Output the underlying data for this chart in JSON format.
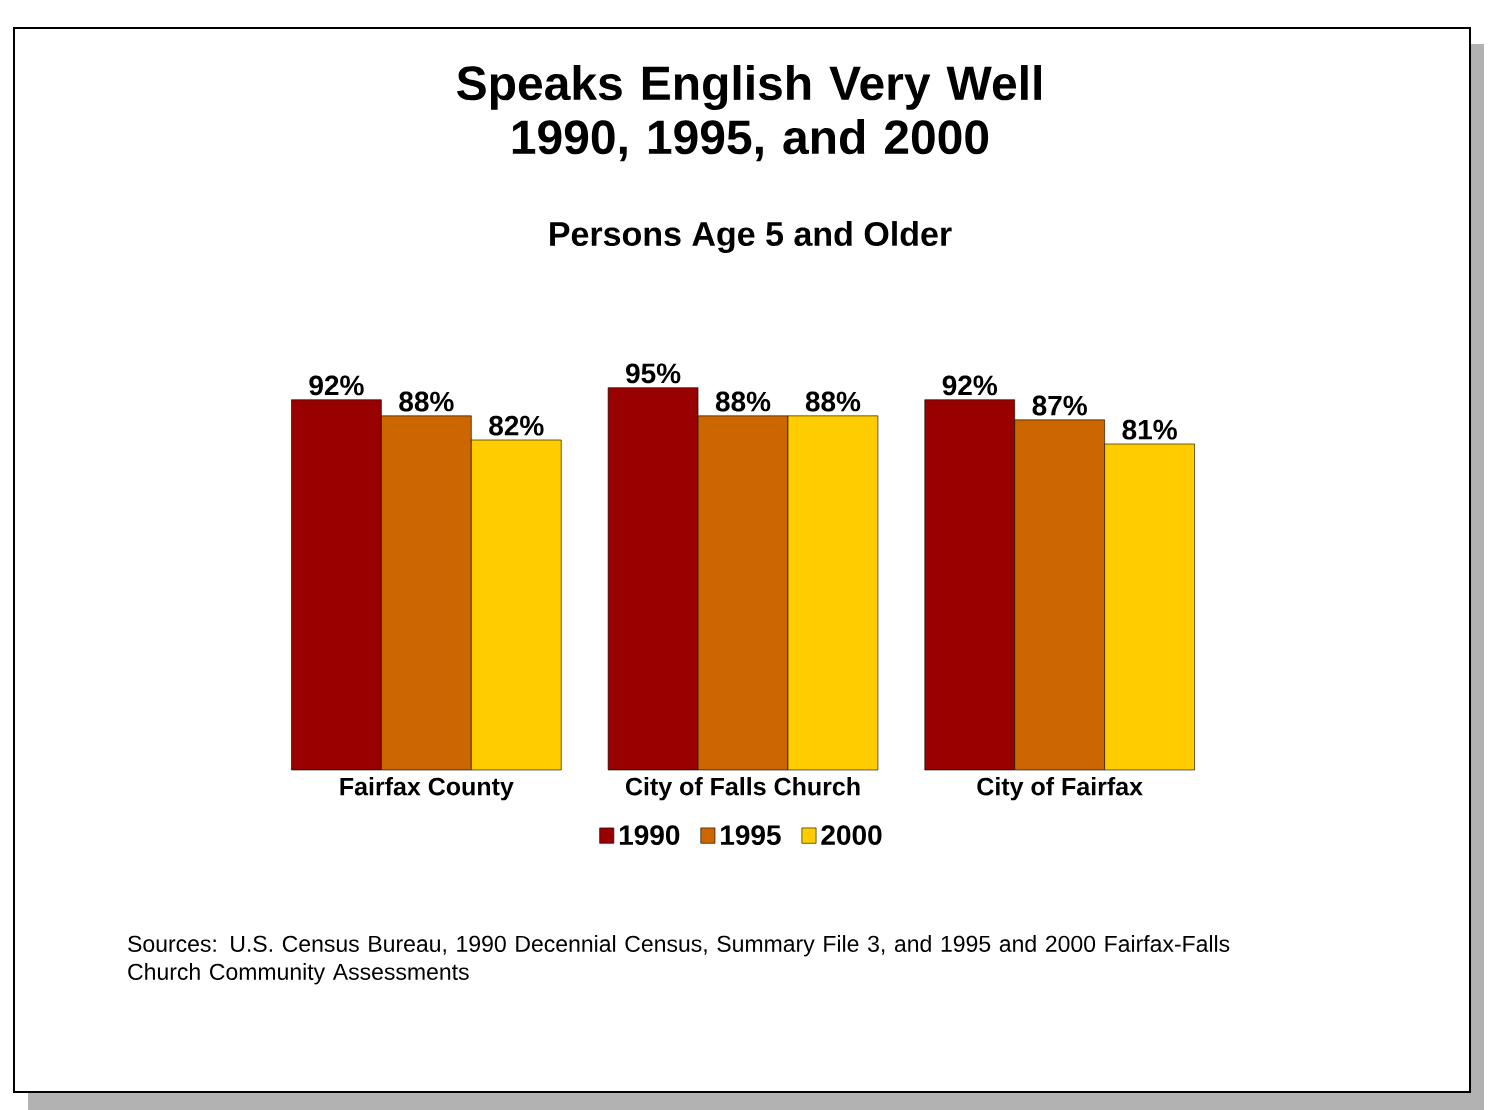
{
  "chart_data": {
    "type": "bar",
    "title": "Speaks English Very Well 1990, 1995, and 2000",
    "subtitle": "Persons Age 5 and Older",
    "categories": [
      "Fairfax County",
      "City of Falls Church",
      "City of Fairfax"
    ],
    "series": [
      {
        "name": "1990",
        "color": "#990000",
        "values": [
          92,
          95,
          92
        ],
        "value_labels": [
          "92%",
          "95%",
          "92%"
        ]
      },
      {
        "name": "1995",
        "color": "#cc6600",
        "values": [
          88,
          88,
          87
        ],
        "value_labels": [
          "88%",
          "88%",
          "87%"
        ]
      },
      {
        "name": "2000",
        "color": "#ffcc00",
        "values": [
          82,
          88,
          81
        ],
        "value_labels": [
          "82%",
          "88%",
          "81%"
        ]
      }
    ],
    "legend": "bottom",
    "annotations": [
      "Sources: U.S. Census Bureau, 1990 Decennial Census, Summary File 3, and 1995 and 2000 Fairfax-Falls Church Community Assessments"
    ]
  }
}
